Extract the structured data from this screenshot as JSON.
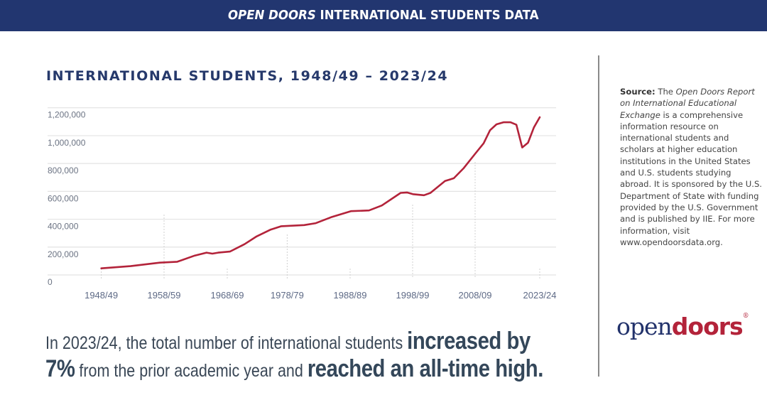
{
  "header": {
    "title_italic": "OPEN DOORS",
    "title_rest": " INTERNATIONAL STUDENTS DATA"
  },
  "chart_data": {
    "type": "line",
    "title": "INTERNATIONAL STUDENTS, 1948/49 – 2023/24",
    "xlabel": "",
    "ylabel": "",
    "ylim": [
      0,
      1200000
    ],
    "yticks": [
      "0",
      "200,000",
      "400,000",
      "600,000",
      "800,000",
      "1,000,000",
      "1,200,000"
    ],
    "xticks": [
      "1948/49",
      "1958/59",
      "1968/69",
      "1978/79",
      "1988/89",
      "1998/99",
      "2008/09",
      "2023/24"
    ],
    "grid": true,
    "line_color": "#b3233a",
    "series": [
      {
        "x": [
          1948,
          1953,
          1958,
          1961,
          1964,
          1966,
          1967,
          1968,
          1970,
          1972.5,
          1974.5,
          1977,
          1978.8,
          1982.7,
          1984.7,
          1987.3,
          1990.7,
          1993.8,
          1996,
          1999.2,
          2000.3,
          2001.3,
          2003.2,
          2004.3,
          2006.8,
          2008.3,
          2010,
          2012,
          2013.4,
          2014.5,
          2015.6,
          2016.8,
          2018,
          2019,
          2020,
          2021,
          2022,
          2023
        ],
        "values": [
          47500,
          63000,
          88000,
          95000,
          139000,
          160000,
          153000,
          160000,
          168000,
          221000,
          275000,
          326000,
          350000,
          358000,
          372000,
          414000,
          458000,
          463000,
          499000,
          589000,
          592000,
          580000,
          572000,
          589000,
          674000,
          694000,
          767000,
          872000,
          945000,
          1039000,
          1081000,
          1096000,
          1096000,
          1078000,
          915000,
          949000,
          1059000,
          1132000
        ]
      }
    ]
  },
  "summary": {
    "part1": "In 2023/24, the total number of international students ",
    "bold1": "increased by",
    "bold2": "7%",
    "part2": " from the prior academic year and ",
    "bold3": "reached an all-time high."
  },
  "source": {
    "label": "Source:",
    "t1": " The ",
    "italic": "Open Doors Report on International Educational Exchange",
    "t2": " is a comprehensive information resource on international students and scholars at higher education institutions in the United States and U.S. students studying abroad. It is sponsored by the U.S. Department of State with funding provided by the U.S. Government and is published by IIE. For more information, visit www.opendoorsdata.org."
  },
  "logo": {
    "open": "open",
    "doors": "doors",
    "mark": "®"
  }
}
